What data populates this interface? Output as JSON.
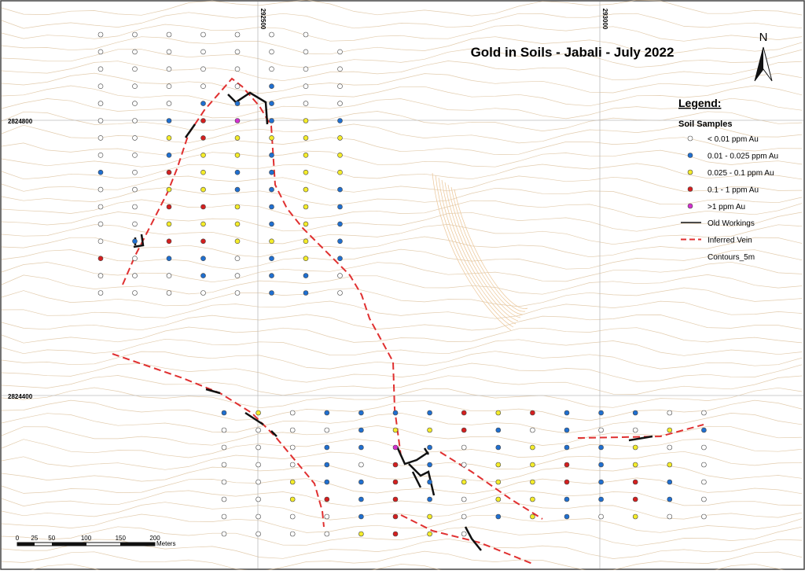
{
  "title": "Gold in Soils - Jabali - July 2022",
  "north": "N",
  "coordinates": {
    "x": [
      292500,
      293000
    ],
    "y": [
      2824800,
      2824400
    ]
  },
  "legend": {
    "title": "Legend:",
    "group": "Soil Samples",
    "samples": [
      "< 0.01 ppm Au",
      "0.01 - 0.025 ppm Au",
      "0.025 - 0.1 ppm Au",
      "0.1 - 1 ppm Au",
      ">1 ppm Au"
    ],
    "lines": [
      "Old Workings",
      "Inferred Vein",
      "Contours_5m"
    ]
  },
  "scale_bar": {
    "labels": [
      0,
      25,
      50,
      100,
      150,
      200
    ],
    "unit": "Meters"
  }
}
